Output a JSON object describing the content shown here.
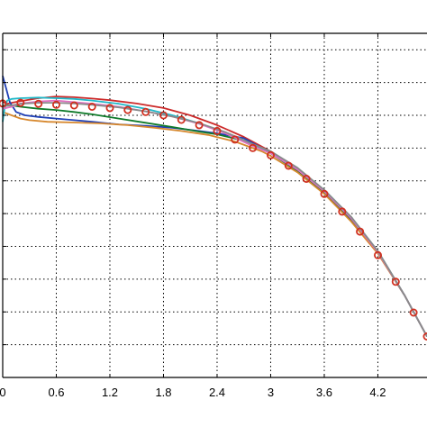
{
  "chart_data": {
    "type": "line",
    "xlim": [
      0,
      4.75
    ],
    "ylim": [
      0,
      1.05
    ],
    "x_ticks": [
      0,
      0.6,
      1.2,
      1.8,
      2.4,
      3,
      3.6,
      4.2
    ],
    "x_tick_labels": [
      "0",
      "0.6",
      "1.2",
      "1.8",
      "2.4",
      "3",
      "3.6",
      "4.2"
    ],
    "y_ticks": [
      0.1,
      0.2,
      0.3,
      0.4,
      0.5,
      0.6,
      0.7,
      0.8,
      0.9,
      1.0
    ],
    "grid": true,
    "legend": "none",
    "reference_markers": {
      "marker": "circle",
      "color": "#d03020",
      "x": [
        0.0,
        0.2,
        0.4,
        0.6,
        0.8,
        1.0,
        1.2,
        1.4,
        1.6,
        1.8,
        2.0,
        2.2,
        2.4,
        2.6,
        2.8,
        3.0,
        3.2,
        3.4,
        3.6,
        3.8,
        4.0,
        4.2,
        4.4,
        4.6,
        4.75
      ],
      "y": [
        0.836,
        0.838,
        0.835,
        0.832,
        0.83,
        0.826,
        0.822,
        0.816,
        0.81,
        0.8,
        0.786,
        0.77,
        0.752,
        0.726,
        0.7,
        0.678,
        0.646,
        0.606,
        0.56,
        0.506,
        0.445,
        0.373,
        0.292,
        0.198,
        0.125
      ]
    },
    "series": [
      {
        "color": "#cc2a2a",
        "x": [
          0,
          0.05,
          0.1,
          0.2,
          0.4,
          0.6,
          0.8,
          1.0,
          1.2,
          1.5,
          1.8,
          2.1,
          2.4,
          2.7,
          3.0,
          3.3,
          3.6,
          3.9,
          4.2,
          4.5,
          4.75
        ],
        "y": [
          0.84,
          0.835,
          0.838,
          0.843,
          0.852,
          0.857,
          0.855,
          0.851,
          0.846,
          0.836,
          0.822,
          0.8,
          0.77,
          0.734,
          0.69,
          0.637,
          0.57,
          0.49,
          0.385,
          0.25,
          0.125
        ]
      },
      {
        "color": "#1f3fb5",
        "x": [
          0,
          0.04,
          0.08,
          0.15,
          0.25,
          0.4,
          0.6,
          0.8,
          1.0,
          1.3,
          1.6,
          1.9,
          2.2,
          2.4,
          2.7,
          3.0,
          3.3,
          3.6,
          3.9,
          4.2,
          4.5,
          4.75
        ],
        "y": [
          0.92,
          0.88,
          0.84,
          0.81,
          0.8,
          0.795,
          0.79,
          0.785,
          0.78,
          0.772,
          0.768,
          0.762,
          0.752,
          0.745,
          0.73,
          0.685,
          0.63,
          0.563,
          0.48,
          0.38,
          0.25,
          0.125
        ]
      },
      {
        "color": "#0f7a2a",
        "x": [
          0,
          0.1,
          0.2,
          0.4,
          0.6,
          0.8,
          1.0,
          1.3,
          1.6,
          1.9,
          2.2,
          2.4,
          2.7,
          3.0,
          3.3,
          3.6,
          3.9,
          4.2,
          4.5,
          4.75
        ],
        "y": [
          0.83,
          0.83,
          0.826,
          0.82,
          0.816,
          0.81,
          0.803,
          0.79,
          0.777,
          0.764,
          0.75,
          0.742,
          0.722,
          0.684,
          0.63,
          0.562,
          0.478,
          0.38,
          0.25,
          0.125
        ]
      },
      {
        "color": "#d7882e",
        "x": [
          0,
          0.1,
          0.2,
          0.3,
          0.5,
          0.8,
          1.1,
          1.4,
          1.7,
          2.0,
          2.3,
          2.6,
          2.9,
          3.0,
          3.3,
          3.6,
          3.9,
          4.2,
          4.5,
          4.75
        ],
        "y": [
          0.81,
          0.8,
          0.79,
          0.785,
          0.78,
          0.778,
          0.775,
          0.77,
          0.762,
          0.752,
          0.74,
          0.72,
          0.69,
          0.676,
          0.626,
          0.56,
          0.476,
          0.378,
          0.25,
          0.125
        ]
      },
      {
        "color": "#20b8c8",
        "x": [
          0,
          0.02,
          0.05,
          0.1,
          0.2,
          0.4,
          0.6,
          0.8,
          1.0,
          1.3,
          1.6,
          1.9,
          2.2,
          2.5,
          2.8,
          3.0,
          3.3,
          3.6,
          3.9,
          4.2,
          4.5,
          4.75
        ],
        "y": [
          0.78,
          0.82,
          0.845,
          0.85,
          0.852,
          0.854,
          0.852,
          0.85,
          0.845,
          0.835,
          0.82,
          0.8,
          0.775,
          0.745,
          0.71,
          0.69,
          0.638,
          0.572,
          0.49,
          0.385,
          0.25,
          0.125
        ]
      },
      {
        "color": "#e070c0",
        "x": [
          0,
          0.1,
          0.2,
          0.4,
          0.6,
          0.8,
          1.0,
          1.3,
          1.6,
          1.9,
          2.2,
          2.5,
          2.8,
          3.0,
          3.3,
          3.6,
          3.9,
          4.2,
          4.5,
          4.75
        ],
        "y": [
          0.82,
          0.826,
          0.836,
          0.842,
          0.845,
          0.84,
          0.835,
          0.826,
          0.812,
          0.796,
          0.774,
          0.744,
          0.706,
          0.684,
          0.634,
          0.568,
          0.486,
          0.382,
          0.25,
          0.125
        ]
      },
      {
        "color": "#8a8a8a",
        "x": [
          0,
          0.1,
          0.2,
          0.4,
          0.6,
          0.8,
          1.0,
          1.3,
          1.6,
          1.9,
          2.2,
          2.5,
          2.8,
          3.0,
          3.3,
          3.6,
          3.9,
          4.2,
          4.5,
          4.75
        ],
        "y": [
          0.828,
          0.83,
          0.835,
          0.838,
          0.838,
          0.836,
          0.832,
          0.824,
          0.812,
          0.796,
          0.776,
          0.748,
          0.712,
          0.69,
          0.64,
          0.572,
          0.49,
          0.385,
          0.25,
          0.125
        ]
      }
    ]
  }
}
